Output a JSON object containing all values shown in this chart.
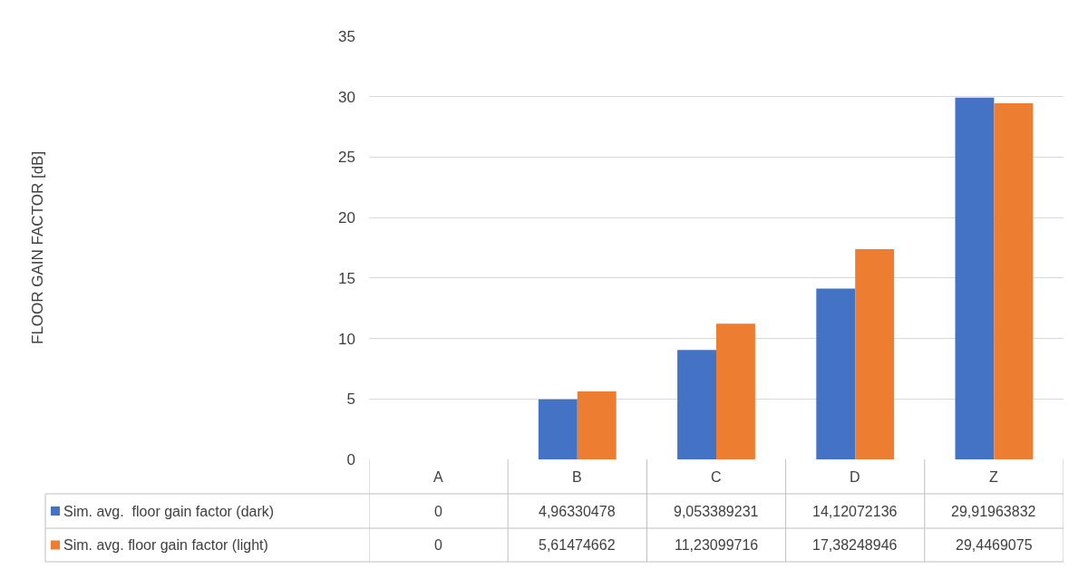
{
  "chart_data": {
    "type": "bar",
    "annotations": [
      "FLOOR GAIN FACTOR [dB]"
    ],
    "categories": [
      "A",
      "B",
      "C",
      "D",
      "Z"
    ],
    "series": [
      {
        "name": "Sim. avg.  floor gain factor (dark)",
        "color": "#4472c4",
        "values": [
          0,
          4.96330478,
          9.053389231,
          14.12072136,
          29.91963832
        ],
        "value_labels": [
          "0",
          "4,96330478",
          "9,053389231",
          "14,12072136",
          "29,91963832"
        ]
      },
      {
        "name": "Sim. avg. floor gain factor (light)",
        "color": "#ed7d31",
        "values": [
          0,
          5.61474662,
          11.23099716,
          17.38248946,
          29.4469075
        ],
        "value_labels": [
          "0",
          "5,61474662",
          "11,23099716",
          "17,38248946",
          "29,4469075"
        ]
      }
    ],
    "ylim": [
      0,
      35
    ],
    "yticks": [
      0,
      5,
      10,
      15,
      20,
      25,
      30,
      35
    ],
    "grid": "y",
    "legend": "bottom left"
  }
}
